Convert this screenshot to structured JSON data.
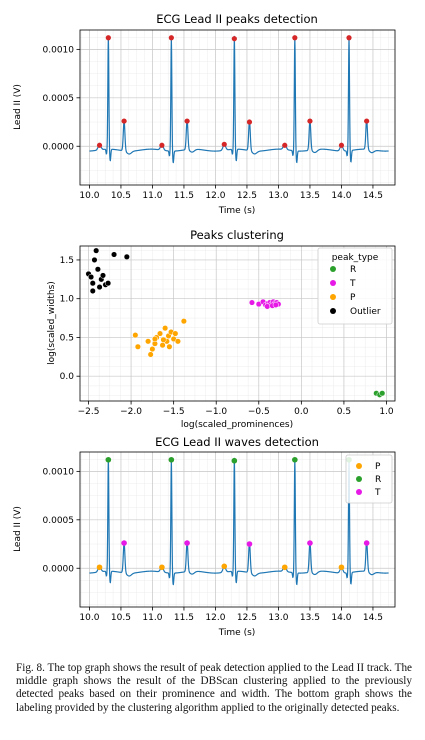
{
  "caption": "Fig. 8.  The top graph shows the result of peak detection applied to the Lead II track. The middle graph shows the result of the DBScan clustering applied to the previously detected peaks based on their prominence and width. The bottom graph shows the labeling provided by the clustering algorithm applied to the originally detected peaks.",
  "colors": {
    "signal": "#1f77b4",
    "peak_marker": "#d62728",
    "R": "#2ca02c",
    "T": "#e619e6",
    "P": "#ffa500",
    "Outlier": "#000000"
  },
  "chart_data": [
    {
      "type": "line",
      "title": "ECG Lead II peaks detection",
      "xlabel": "Time (s)",
      "ylabel": "Lead II (V)",
      "xlim": [
        9.85,
        14.85
      ],
      "ylim": [
        -0.0004,
        0.0012
      ],
      "xticks": [
        "10.0",
        "10.5",
        "11.0",
        "11.5",
        "12.0",
        "12.5",
        "13.0",
        "13.5",
        "14.0",
        "14.5"
      ],
      "yticks": [
        "0.0000",
        "0.0005",
        "0.0010"
      ],
      "grid": true,
      "series": [
        {
          "kind": "scatter",
          "x": [
            10.16,
            10.3,
            10.55,
            11.15,
            11.3,
            11.55,
            12.14,
            12.3,
            12.54,
            13.1,
            13.26,
            13.5,
            14.0,
            14.12,
            14.4
          ],
          "y": [
            1e-05,
            0.00112,
            0.00026,
            1e-05,
            0.00112,
            0.00026,
            2e-05,
            0.00111,
            0.00025,
            1e-05,
            0.00112,
            0.00026,
            1e-05,
            0.00112,
            0.00026
          ]
        }
      ]
    },
    {
      "type": "scatter",
      "title": "Peaks clustering",
      "xlabel": "log(scaled_prominences)",
      "ylabel": "log(scaled_widths)",
      "xlim": [
        -2.6,
        1.1
      ],
      "ylim": [
        -0.32,
        1.68
      ],
      "xticks": [
        "−2.5",
        "−2.0",
        "−1.5",
        "−1.0",
        "−0.5",
        "0.0",
        "0.5",
        "1.0"
      ],
      "yticks": [
        "0.0",
        "0.5",
        "1.0",
        "1.5"
      ],
      "grid": true,
      "legend_title": "peak_type",
      "legend_position": "top-right",
      "series": [
        {
          "name": "R",
          "x": [
            0.88,
            0.92,
            0.95
          ],
          "y": [
            -0.22,
            -0.24,
            -0.22
          ]
        },
        {
          "name": "T",
          "x": [
            -0.58,
            -0.5,
            -0.45,
            -0.42,
            -0.39,
            -0.37,
            -0.35,
            -0.33,
            -0.31,
            -0.29,
            -0.27,
            -0.4,
            -0.34,
            -0.3
          ],
          "y": [
            0.95,
            0.93,
            0.96,
            0.92,
            0.94,
            0.95,
            0.93,
            0.96,
            0.94,
            0.95,
            0.93,
            0.9,
            0.91,
            0.92
          ]
        },
        {
          "name": "P",
          "x": [
            -1.95,
            -1.92,
            -1.8,
            -1.77,
            -1.75,
            -1.72,
            -1.7,
            -1.66,
            -1.63,
            -1.6,
            -1.58,
            -1.56,
            -1.55,
            -1.53,
            -1.5,
            -1.48,
            -1.45,
            -1.38,
            -1.72,
            -1.62
          ],
          "y": [
            0.53,
            0.38,
            0.45,
            0.28,
            0.35,
            0.42,
            0.5,
            0.55,
            0.4,
            0.62,
            0.45,
            0.52,
            0.38,
            0.57,
            0.48,
            0.55,
            0.45,
            0.71,
            0.48,
            0.47
          ]
        },
        {
          "name": "Outlier",
          "x": [
            -2.5,
            -2.47,
            -2.45,
            -2.43,
            -2.41,
            -2.39,
            -2.37,
            -2.35,
            -2.33,
            -2.3,
            -2.27,
            -2.2,
            -2.05,
            -2.45
          ],
          "y": [
            1.32,
            1.28,
            1.2,
            1.5,
            1.62,
            1.38,
            1.15,
            1.25,
            1.3,
            1.18,
            1.2,
            1.57,
            1.54,
            1.1
          ]
        }
      ]
    },
    {
      "type": "line",
      "title": "ECG Lead II waves detection",
      "xlabel": "Time (s)",
      "ylabel": "Lead II (V)",
      "xlim": [
        9.85,
        14.85
      ],
      "ylim": [
        -0.0004,
        0.0012
      ],
      "xticks": [
        "10.0",
        "10.5",
        "11.0",
        "11.5",
        "12.0",
        "12.5",
        "13.0",
        "13.5",
        "14.0",
        "14.5"
      ],
      "yticks": [
        "0.0000",
        "0.0005",
        "0.0010"
      ],
      "grid": true,
      "legend_position": "top-right",
      "series": [
        {
          "name": "P",
          "x": [
            10.16,
            11.15,
            12.14,
            13.1,
            14.0
          ],
          "y": [
            1e-05,
            1e-05,
            2e-05,
            1e-05,
            1e-05
          ]
        },
        {
          "name": "R",
          "x": [
            10.3,
            11.3,
            12.3,
            13.26,
            14.12
          ],
          "y": [
            0.00112,
            0.00112,
            0.00111,
            0.00112,
            0.00112
          ]
        },
        {
          "name": "T",
          "x": [
            10.55,
            11.55,
            12.54,
            13.5,
            14.4
          ],
          "y": [
            0.00026,
            0.00026,
            0.00025,
            0.00026,
            0.00026
          ]
        }
      ]
    }
  ]
}
